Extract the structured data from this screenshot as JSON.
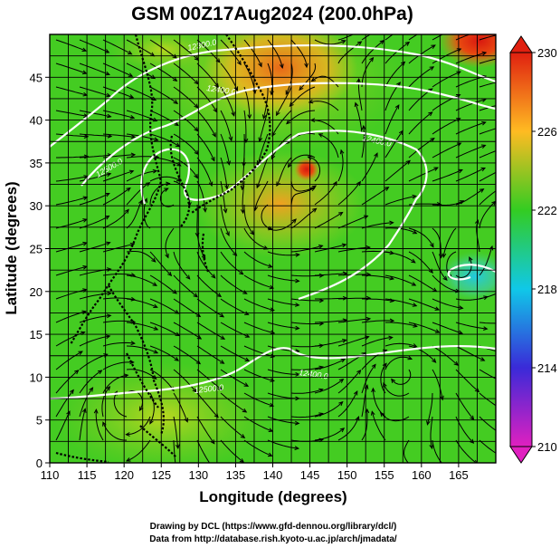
{
  "title": "GSM 00Z17Aug2024 (200.0hPa)",
  "x_axis": {
    "label": "Longitude (degrees)",
    "ticks": [
      "110",
      "115",
      "120",
      "125",
      "130",
      "135",
      "140",
      "145",
      "150",
      "155",
      "160",
      "165"
    ]
  },
  "y_axis": {
    "label": "Latitude  (degrees)",
    "ticks": [
      "0",
      "5",
      "10",
      "15",
      "20",
      "25",
      "30",
      "35",
      "40",
      "45"
    ]
  },
  "colorbar": {
    "ticks": [
      "210",
      "214",
      "218",
      "222",
      "226",
      "230"
    ],
    "colors": [
      "#e020c0",
      "#3a2ad8",
      "#10c8e8",
      "#33cc22",
      "#ffbb22",
      "#e02010"
    ]
  },
  "contour_labels": [
    "12300.0",
    "12400.0",
    "12400.0",
    "12400.0",
    "12500.0",
    "12500.0"
  ],
  "credits": {
    "line1": "Drawing by DCL (https://www.gfd-dennou.org/library/dcl/)",
    "line2": "Data from http://database.rish.kyoto-u.ac.jp/arch/jmadata/"
  }
}
